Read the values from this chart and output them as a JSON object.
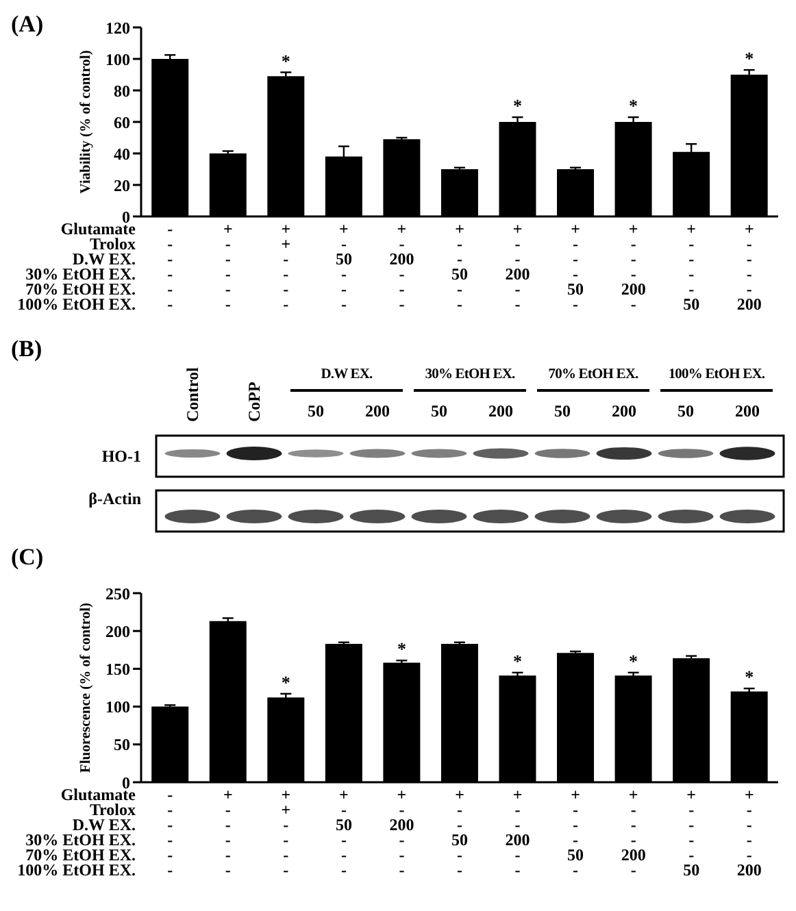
{
  "chart_data": [
    {
      "type": "bar",
      "title": "(A)",
      "ylabel": "Viability  (% of control)",
      "categories": [
        null,
        null,
        null,
        null,
        null,
        null,
        null,
        null,
        null,
        null,
        null
      ],
      "values": [
        100,
        40,
        89,
        38,
        49,
        30,
        60,
        30,
        60,
        41,
        90
      ],
      "errors": [
        2.5,
        1.5,
        2.5,
        6.5,
        1,
        1,
        3,
        1,
        3,
        5,
        3
      ],
      "value_labels": [
        null,
        null,
        "*",
        null,
        null,
        null,
        "*",
        null,
        "*",
        null,
        "*"
      ],
      "color": "#000000",
      "ylim": [
        0,
        120
      ],
      "yticks": [
        0,
        20,
        40,
        60,
        80,
        100,
        120
      ],
      "annotations": [
        "Glutamate",
        "-",
        "+",
        "+",
        "+",
        "+",
        "+",
        "+",
        "+",
        "+",
        "+",
        "+",
        "Trolox",
        "-",
        "-",
        "+",
        "-",
        "-",
        "-",
        "-",
        "-",
        "-",
        "-",
        "-",
        "D.W EX.",
        "-",
        "-",
        "-",
        "50",
        "200",
        "-",
        "-",
        "-",
        "-",
        "-",
        "-",
        "30% EtOH EX.",
        "-",
        "-",
        "-",
        "-",
        "-",
        "50",
        "200",
        "-",
        "-",
        "-",
        "-",
        "70% EtOH EX.",
        "-",
        "-",
        "-",
        "-",
        "-",
        "-",
        "-",
        "50",
        "200",
        "-",
        "-",
        "100% EtOH EX.",
        "-",
        "-",
        "-",
        "-",
        "-",
        "-",
        "-",
        "-",
        "-",
        "50",
        "200"
      ]
    },
    {
      "type": "other",
      "title": "(B)",
      "categories": [
        "Control",
        "CoPP",
        "50",
        "200",
        "50",
        "200",
        "50",
        "200",
        "50",
        "200"
      ],
      "y_categories": [
        "HO-1",
        "β-Actin"
      ],
      "annotations": [
        "D.W EX.",
        "30% EtOH EX.",
        "70% EtOH EX.",
        "100% EtOH EX."
      ]
    },
    {
      "type": "bar",
      "title": "(C)",
      "ylabel": "Fluorescence (% of control)",
      "categories": [
        null,
        null,
        null,
        null,
        null,
        null,
        null,
        null,
        null,
        null,
        null
      ],
      "values": [
        100,
        213,
        112,
        183,
        158,
        183,
        141,
        171,
        141,
        164,
        120
      ],
      "errors": [
        2,
        4,
        5,
        2,
        3,
        2,
        4,
        2,
        4,
        3,
        4
      ],
      "value_labels": [
        null,
        null,
        "*",
        null,
        "*",
        null,
        "*",
        null,
        "*",
        null,
        "*"
      ],
      "color": "#000000",
      "ylim": [
        0,
        250
      ],
      "yticks": [
        0,
        50,
        100,
        150,
        200,
        250
      ],
      "annotations": [
        "Glutamate",
        "-",
        "+",
        "+",
        "+",
        "+",
        "+",
        "+",
        "+",
        "+",
        "+",
        "+",
        "Trolox",
        "-",
        "-",
        "+",
        "-",
        "-",
        "-",
        "-",
        "-",
        "-",
        "-",
        "-",
        "D.W EX.",
        "-",
        "-",
        "-",
        "50",
        "200",
        "-",
        "-",
        "-",
        "-",
        "-",
        "-",
        "30% EtOH EX.",
        "-",
        "-",
        "-",
        "-",
        "-",
        "50",
        "200",
        "-",
        "-",
        "-",
        "-",
        "70% EtOH EX.",
        "-",
        "-",
        "-",
        "-",
        "-",
        "-",
        "-",
        "50",
        "200",
        "-",
        "-",
        "100% EtOH EX.",
        "-",
        "-",
        "-",
        "-",
        "-",
        "-",
        "-",
        "-",
        "-",
        "50",
        "200"
      ]
    }
  ]
}
